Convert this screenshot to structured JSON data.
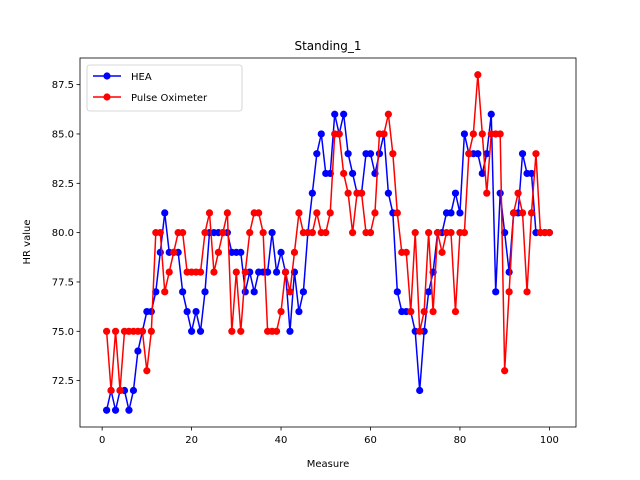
{
  "chart_data": {
    "type": "line",
    "title": "Standing_1",
    "xlabel": "Measure",
    "ylabel": "HR value",
    "xlim": [
      -4.95,
      105.95
    ],
    "ylim": [
      70.15,
      88.85
    ],
    "xticks": [
      0,
      20,
      40,
      60,
      80,
      100
    ],
    "yticks": [
      72.5,
      75.0,
      77.5,
      80.0,
      82.5,
      85.0,
      87.5
    ],
    "ytick_labels": [
      "72.5",
      "75.0",
      "77.5",
      "80.0",
      "82.5",
      "85.0",
      "87.5"
    ],
    "grid": false,
    "legend_position": "top-left",
    "x": [
      1,
      2,
      3,
      4,
      5,
      6,
      7,
      8,
      9,
      10,
      11,
      12,
      13,
      14,
      15,
      16,
      17,
      18,
      19,
      20,
      21,
      22,
      23,
      24,
      25,
      26,
      27,
      28,
      29,
      30,
      31,
      32,
      33,
      34,
      35,
      36,
      37,
      38,
      39,
      40,
      41,
      42,
      43,
      44,
      45,
      46,
      47,
      48,
      49,
      50,
      51,
      52,
      53,
      54,
      55,
      56,
      57,
      58,
      59,
      60,
      61,
      62,
      63,
      64,
      65,
      66,
      67,
      68,
      69,
      70,
      71,
      72,
      73,
      74,
      75,
      76,
      77,
      78,
      79,
      80,
      81,
      82,
      83,
      84,
      85,
      86,
      87,
      88,
      89,
      90,
      91,
      92,
      93,
      94,
      95,
      96,
      97,
      98,
      99,
      100
    ],
    "series": [
      {
        "name": "HEA",
        "color": "#0000ff",
        "values": [
          71,
          72,
          71,
          72,
          72,
          71,
          72,
          74,
          75,
          76,
          76,
          77,
          79,
          81,
          79,
          79,
          79,
          77,
          76,
          75,
          76,
          75,
          77,
          80,
          80,
          80,
          80,
          80,
          79,
          79,
          79,
          77,
          78,
          77,
          78,
          78,
          78,
          80,
          78,
          79,
          78,
          75,
          78,
          76,
          77,
          80,
          82,
          84,
          85,
          83,
          83,
          86,
          85,
          86,
          84,
          83,
          82,
          82,
          84,
          84,
          83,
          84,
          85,
          82,
          81,
          77,
          76,
          76,
          76,
          75,
          72,
          75,
          77,
          78,
          80,
          80,
          81,
          81,
          82,
          81,
          85,
          84,
          84,
          84,
          83,
          84,
          86,
          77,
          82,
          80,
          78,
          81,
          81,
          84,
          83,
          83,
          80,
          80,
          80,
          80
        ]
      },
      {
        "name": "Pulse Oximeter",
        "color": "#ff0000",
        "values": [
          75,
          72,
          75,
          72,
          75,
          75,
          75,
          75,
          75,
          73,
          75,
          80,
          80,
          77,
          78,
          79,
          80,
          80,
          78,
          78,
          78,
          78,
          80,
          81,
          78,
          79,
          80,
          81,
          75,
          78,
          75,
          78,
          80,
          81,
          81,
          80,
          75,
          75,
          75,
          76,
          78,
          77,
          79,
          81,
          80,
          80,
          80,
          81,
          80,
          80,
          81,
          85,
          85,
          83,
          82,
          80,
          82,
          82,
          80,
          80,
          81,
          85,
          85,
          86,
          84,
          81,
          79,
          79,
          76,
          80,
          75,
          76,
          80,
          76,
          80,
          79,
          80,
          80,
          76,
          80,
          80,
          84,
          85,
          88,
          85,
          82,
          85,
          85,
          85,
          73,
          77,
          81,
          82,
          81,
          77,
          81,
          84,
          80,
          80,
          80
        ]
      }
    ]
  }
}
